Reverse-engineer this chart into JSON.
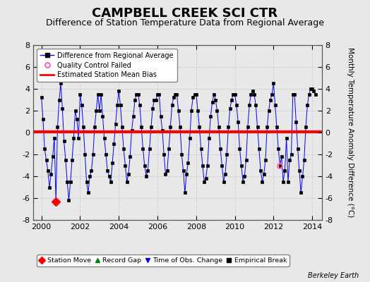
{
  "title": "CAMPBELL CREEK SCI CTR",
  "subtitle": "Difference of Station Temperature Data from Regional Average",
  "ylabel_right": "Monthly Temperature Anomaly Difference (°C)",
  "background_color": "#e8e8e8",
  "plot_bg_color": "#e8e8e8",
  "ylim": [
    -8,
    8
  ],
  "xlim": [
    1999.58,
    2014.5
  ],
  "xticks": [
    2000,
    2002,
    2004,
    2006,
    2008,
    2010,
    2012,
    2014
  ],
  "yticks": [
    -8,
    -6,
    -4,
    -2,
    0,
    2,
    4,
    6,
    8
  ],
  "mean_bias": 0.08,
  "mean_bias_color": "#ff0000",
  "line_color": "#0000ff",
  "marker_color": "#000000",
  "station_move_x": 2000.75,
  "station_move_y": -6.3,
  "qc_failed_x": 2012.33,
  "qc_failed_y": -3.0,
  "grid_color": "#cccccc",
  "title_fontsize": 13,
  "subtitle_fontsize": 9,
  "data_x": [
    2000.0,
    2000.083,
    2000.167,
    2000.25,
    2000.333,
    2000.417,
    2000.5,
    2000.583,
    2000.667,
    2000.75,
    2000.833,
    2000.917,
    2001.0,
    2001.083,
    2001.167,
    2001.25,
    2001.333,
    2001.417,
    2001.5,
    2001.583,
    2001.667,
    2001.75,
    2001.833,
    2001.917,
    2002.0,
    2002.083,
    2002.167,
    2002.25,
    2002.333,
    2002.417,
    2002.5,
    2002.583,
    2002.667,
    2002.75,
    2002.833,
    2002.917,
    2003.0,
    2003.083,
    2003.167,
    2003.25,
    2003.333,
    2003.417,
    2003.5,
    2003.583,
    2003.667,
    2003.75,
    2003.833,
    2003.917,
    2004.0,
    2004.083,
    2004.167,
    2004.25,
    2004.333,
    2004.417,
    2004.5,
    2004.583,
    2004.667,
    2004.75,
    2004.833,
    2004.917,
    2005.0,
    2005.083,
    2005.167,
    2005.25,
    2005.333,
    2005.417,
    2005.5,
    2005.583,
    2005.667,
    2005.75,
    2005.833,
    2005.917,
    2006.0,
    2006.083,
    2006.167,
    2006.25,
    2006.333,
    2006.417,
    2006.5,
    2006.583,
    2006.667,
    2006.75,
    2006.833,
    2006.917,
    2007.0,
    2007.083,
    2007.167,
    2007.25,
    2007.333,
    2007.417,
    2007.5,
    2007.583,
    2007.667,
    2007.75,
    2007.833,
    2007.917,
    2008.0,
    2008.083,
    2008.167,
    2008.25,
    2008.333,
    2008.417,
    2008.5,
    2008.583,
    2008.667,
    2008.75,
    2008.833,
    2008.917,
    2009.0,
    2009.083,
    2009.167,
    2009.25,
    2009.333,
    2009.417,
    2009.5,
    2009.583,
    2009.667,
    2009.75,
    2009.833,
    2009.917,
    2010.0,
    2010.083,
    2010.167,
    2010.25,
    2010.333,
    2010.417,
    2010.5,
    2010.583,
    2010.667,
    2010.75,
    2010.833,
    2010.917,
    2011.0,
    2011.083,
    2011.167,
    2011.25,
    2011.333,
    2011.417,
    2011.5,
    2011.583,
    2011.667,
    2011.75,
    2011.833,
    2011.917,
    2012.0,
    2012.083,
    2012.167,
    2012.25,
    2012.333,
    2012.417,
    2012.5,
    2012.583,
    2012.667,
    2012.75,
    2012.833,
    2012.917,
    2013.0,
    2013.083,
    2013.167,
    2013.25,
    2013.333,
    2013.417,
    2013.5,
    2013.583,
    2013.667,
    2013.75,
    2013.833,
    2013.917,
    2014.0,
    2014.083,
    2014.167
  ],
  "data_y": [
    3.2,
    1.2,
    -1.5,
    -2.5,
    -3.5,
    -5.0,
    -3.8,
    -2.2,
    -0.5,
    -6.3,
    0.5,
    3.0,
    4.5,
    2.2,
    -0.8,
    -2.5,
    -4.5,
    -6.2,
    -4.5,
    -2.5,
    -0.5,
    2.0,
    1.2,
    -0.5,
    3.5,
    2.5,
    0.5,
    -2.0,
    -4.5,
    -5.5,
    -4.0,
    -3.5,
    -2.0,
    0.5,
    2.0,
    3.5,
    2.0,
    3.5,
    1.5,
    -0.5,
    -2.0,
    -3.5,
    -4.0,
    -4.5,
    -2.8,
    -1.0,
    0.8,
    2.5,
    3.8,
    2.5,
    0.5,
    -1.5,
    -3.0,
    -4.5,
    -3.8,
    -2.2,
    0.2,
    1.5,
    3.0,
    3.5,
    3.5,
    2.5,
    0.5,
    -1.5,
    -3.0,
    -4.0,
    -3.5,
    -1.5,
    0.5,
    2.2,
    3.0,
    3.0,
    3.5,
    3.5,
    1.5,
    0.2,
    -2.0,
    -3.8,
    -3.5,
    -1.5,
    0.5,
    2.5,
    3.2,
    3.5,
    3.5,
    2.0,
    0.5,
    -2.0,
    -3.5,
    -5.5,
    -3.8,
    -2.8,
    -0.5,
    2.0,
    3.2,
    3.5,
    3.5,
    2.0,
    0.5,
    -1.5,
    -3.0,
    -4.5,
    -4.2,
    -3.0,
    -0.5,
    1.5,
    2.8,
    3.5,
    3.0,
    2.0,
    0.5,
    -1.5,
    -3.0,
    -4.5,
    -3.8,
    -2.0,
    0.5,
    2.2,
    3.0,
    3.5,
    3.5,
    2.5,
    1.0,
    -1.5,
    -3.0,
    -4.5,
    -4.0,
    -2.5,
    0.5,
    2.5,
    3.5,
    3.8,
    3.5,
    2.5,
    0.5,
    -1.5,
    -3.5,
    -4.5,
    -3.8,
    -2.5,
    0.5,
    2.0,
    3.0,
    3.5,
    4.5,
    2.5,
    0.5,
    -1.5,
    -3.0,
    -2.2,
    -4.5,
    -3.5,
    -0.5,
    -4.5,
    -2.5,
    -2.0,
    3.5,
    3.5,
    1.0,
    -1.5,
    -3.5,
    -5.5,
    -4.0,
    -2.5,
    0.5,
    2.5,
    3.5,
    4.0,
    4.0,
    3.8,
    3.5
  ]
}
